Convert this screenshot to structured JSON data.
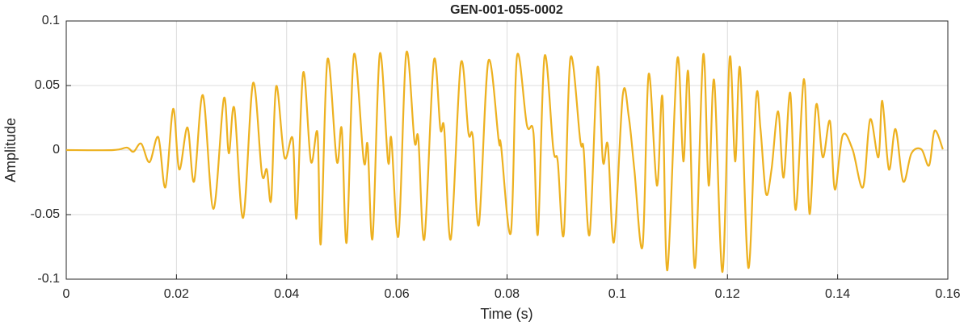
{
  "chart_data": {
    "type": "line",
    "title": "GEN-001-055-0002",
    "xlabel": "Time (s)",
    "ylabel": "Amplitude",
    "xlim": [
      0,
      0.16
    ],
    "xticks": [
      0,
      0.02,
      0.04,
      0.06,
      0.08,
      0.1,
      0.12,
      0.14,
      0.16
    ],
    "ylim": [
      -0.1,
      0.1
    ],
    "yticks": [
      -0.1,
      -0.05,
      0,
      0.05,
      0.1
    ],
    "grid": true,
    "series": [
      {
        "color": "#EDB120",
        "x": [
          0,
          0.0085,
          0.011,
          0.0122,
          0.0136,
          0.0151,
          0.0167,
          0.018,
          0.0194,
          0.0205,
          0.022,
          0.0232,
          0.0248,
          0.0267,
          0.0286,
          0.0295,
          0.0305,
          0.0321,
          0.0339,
          0.0355,
          0.0364,
          0.0372,
          0.0381,
          0.0396,
          0.0411,
          0.0418,
          0.043,
          0.0444,
          0.0456,
          0.0462,
          0.0474,
          0.0491,
          0.05,
          0.0509,
          0.0522,
          0.054,
          0.0547,
          0.0556,
          0.0569,
          0.0584,
          0.059,
          0.0603,
          0.0617,
          0.0632,
          0.0639,
          0.065,
          0.0667,
          0.0679,
          0.0686,
          0.0698,
          0.0716,
          0.073,
          0.0738,
          0.0749,
          0.0766,
          0.0785,
          0.0789,
          0.0807,
          0.0818,
          0.0836,
          0.0848,
          0.0856,
          0.0868,
          0.0884,
          0.0892,
          0.0903,
          0.0915,
          0.0933,
          0.0939,
          0.095,
          0.0964,
          0.0974,
          0.0983,
          0.0994,
          0.101,
          0.1021,
          0.1031,
          0.1046,
          0.1057,
          0.1072,
          0.1082,
          0.1091,
          0.1109,
          0.112,
          0.1129,
          0.1141,
          0.1156,
          0.1166,
          0.1176,
          0.1191,
          0.1204,
          0.1214,
          0.1223,
          0.1238,
          0.1252,
          0.126,
          0.127,
          0.128,
          0.1292,
          0.1302,
          0.1314,
          0.1324,
          0.1339,
          0.1349,
          0.1361,
          0.1373,
          0.1386,
          0.1395,
          0.1409,
          0.1427,
          0.1446,
          0.1459,
          0.1474,
          0.1481,
          0.1493,
          0.1505,
          0.1519,
          0.1534,
          0.1552,
          0.1566,
          0.1576,
          0.1591
        ],
        "values": [
          0,
          0,
          0.0019,
          -0.0013,
          0.005,
          -0.0094,
          0.01,
          -0.0288,
          0.0319,
          -0.015,
          0.0175,
          -0.0244,
          0.0425,
          -0.0456,
          0.04,
          -0.0025,
          0.0325,
          -0.0525,
          0.0519,
          -0.0181,
          -0.015,
          -0.0381,
          0.0494,
          -0.0056,
          0.0088,
          -0.0525,
          0.06,
          -0.0088,
          0.0131,
          -0.0725,
          0.07,
          -0.0088,
          0.0163,
          -0.0713,
          0.0738,
          -0.0088,
          0.0038,
          -0.0681,
          0.0744,
          -0.0088,
          0.0088,
          -0.0663,
          0.075,
          0.0069,
          0.0088,
          -0.0688,
          0.0688,
          0.0163,
          0.0163,
          -0.0688,
          0.0669,
          0.0131,
          0.01,
          -0.0575,
          0.0688,
          0.0069,
          0.0038,
          -0.0638,
          0.0725,
          0.0194,
          0.0131,
          -0.065,
          0.0725,
          0.0006,
          -0.0088,
          -0.065,
          0.0713,
          0.0069,
          0.0006,
          -0.065,
          0.0638,
          -0.0088,
          0.0038,
          -0.0713,
          0.0425,
          0.0256,
          -0.015,
          -0.0744,
          0.0588,
          -0.0275,
          0.0413,
          -0.0931,
          0.0706,
          -0.0088,
          0.06,
          -0.0913,
          0.0738,
          -0.0275,
          0.0538,
          -0.0944,
          0.0713,
          -0.0088,
          0.0631,
          -0.0913,
          0.04,
          0.0163,
          -0.0338,
          -0.015,
          0.03,
          -0.0213,
          0.0444,
          -0.0463,
          0.055,
          -0.0494,
          0.035,
          -0.0056,
          0.0225,
          -0.0306,
          0.0113,
          0.0006,
          -0.0288,
          0.0238,
          -0.0056,
          0.0381,
          -0.015,
          0.0163,
          -0.0244,
          -0.0025,
          0.0006,
          -0.0119,
          0.015,
          0.0006
        ]
      }
    ]
  }
}
